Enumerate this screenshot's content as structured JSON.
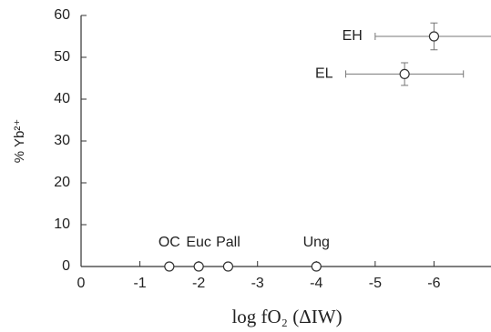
{
  "chart_data": {
    "type": "scatter",
    "x_label": "log fO₂ (ΔIW)",
    "y_label": "% Yb²⁺",
    "x": [
      -1.5,
      -2,
      -2.5,
      -4,
      -5.5,
      -6
    ],
    "values": [
      0,
      0,
      0,
      0,
      46,
      55
    ],
    "x_errors": [
      null,
      null,
      null,
      null,
      1,
      1
    ],
    "errors": [
      null,
      null,
      null,
      null,
      2.7,
      3.2
    ],
    "point_labels": [
      "OC",
      "Euc",
      "Pall",
      "Ung",
      "EL",
      "EH"
    ],
    "color": "#333333",
    "xlim": [
      0,
      -7
    ],
    "ylim": [
      0,
      60
    ],
    "xticks": [
      0,
      -1,
      -2,
      -3,
      -4,
      -5,
      -6
    ],
    "yticks": [
      0,
      10,
      20,
      30,
      40,
      50,
      60
    ]
  }
}
